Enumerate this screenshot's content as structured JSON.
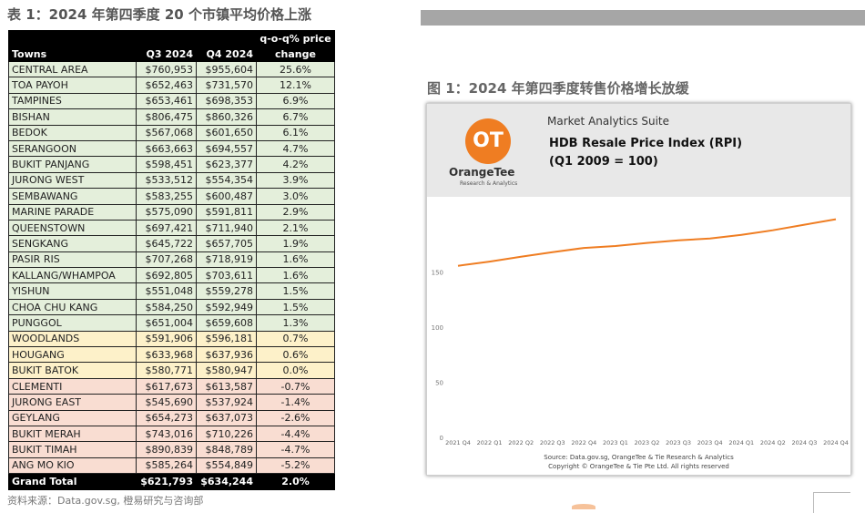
{
  "left": {
    "title": "表 1：2024 年第四季度 20 个市镇平均价格上涨",
    "source": "资料来源：Data.gov.sg, 橙易研究与咨询部",
    "header": {
      "pct_line1": "q-o-q% price",
      "towns": "Towns",
      "q3": "Q3 2024",
      "q4": "Q4 2024",
      "pct_line2": "change"
    },
    "rows": [
      {
        "town": "CENTRAL AREA",
        "q3": "$760,953",
        "q4": "$955,604",
        "chg": "25.6%",
        "band": "g"
      },
      {
        "town": "TOA PAYOH",
        "q3": "$652,463",
        "q4": "$731,570",
        "chg": "12.1%",
        "band": "g"
      },
      {
        "town": "TAMPINES",
        "q3": "$653,461",
        "q4": "$698,353",
        "chg": "6.9%",
        "band": "g"
      },
      {
        "town": "BISHAN",
        "q3": "$806,475",
        "q4": "$860,326",
        "chg": "6.7%",
        "band": "g"
      },
      {
        "town": "BEDOK",
        "q3": "$567,068",
        "q4": "$601,650",
        "chg": "6.1%",
        "band": "g"
      },
      {
        "town": "SERANGOON",
        "q3": "$663,663",
        "q4": "$694,557",
        "chg": "4.7%",
        "band": "g"
      },
      {
        "town": "BUKIT PANJANG",
        "q3": "$598,451",
        "q4": "$623,377",
        "chg": "4.2%",
        "band": "g"
      },
      {
        "town": "JURONG WEST",
        "q3": "$533,512",
        "q4": "$554,354",
        "chg": "3.9%",
        "band": "g"
      },
      {
        "town": "SEMBAWANG",
        "q3": "$583,255",
        "q4": "$600,487",
        "chg": "3.0%",
        "band": "g"
      },
      {
        "town": "MARINE PARADE",
        "q3": "$575,090",
        "q4": "$591,811",
        "chg": "2.9%",
        "band": "g"
      },
      {
        "town": "QUEENSTOWN",
        "q3": "$697,421",
        "q4": "$711,940",
        "chg": "2.1%",
        "band": "g"
      },
      {
        "town": "SENGKANG",
        "q3": "$645,722",
        "q4": "$657,705",
        "chg": "1.9%",
        "band": "g"
      },
      {
        "town": "PASIR RIS",
        "q3": "$707,268",
        "q4": "$718,919",
        "chg": "1.6%",
        "band": "g"
      },
      {
        "town": "KALLANG/WHAMPOA",
        "q3": "$692,805",
        "q4": "$703,611",
        "chg": "1.6%",
        "band": "g"
      },
      {
        "town": "YISHUN",
        "q3": "$551,048",
        "q4": "$559,278",
        "chg": "1.5%",
        "band": "g"
      },
      {
        "town": "CHOA CHU KANG",
        "q3": "$584,250",
        "q4": "$592,949",
        "chg": "1.5%",
        "band": "g"
      },
      {
        "town": "PUNGGOL",
        "q3": "$651,004",
        "q4": "$659,608",
        "chg": "1.3%",
        "band": "g"
      },
      {
        "town": "WOODLANDS",
        "q3": "$591,906",
        "q4": "$596,181",
        "chg": "0.7%",
        "band": "y"
      },
      {
        "town": "HOUGANG",
        "q3": "$633,968",
        "q4": "$637,936",
        "chg": "0.6%",
        "band": "y"
      },
      {
        "town": "BUKIT BATOK",
        "q3": "$580,771",
        "q4": "$580,947",
        "chg": "0.0%",
        "band": "y"
      },
      {
        "town": "CLEMENTI",
        "q3": "$617,673",
        "q4": "$613,587",
        "chg": "-0.7%",
        "band": "r"
      },
      {
        "town": "JURONG EAST",
        "q3": "$545,690",
        "q4": "$537,924",
        "chg": "-1.4%",
        "band": "r"
      },
      {
        "town": "GEYLANG",
        "q3": "$654,273",
        "q4": "$637,073",
        "chg": "-2.6%",
        "band": "r"
      },
      {
        "town": "BUKIT MERAH",
        "q3": "$743,016",
        "q4": "$710,226",
        "chg": "-4.4%",
        "band": "r"
      },
      {
        "town": "BUKIT TIMAH",
        "q3": "$890,839",
        "q4": "$848,789",
        "chg": "-4.7%",
        "band": "r"
      },
      {
        "town": "ANG MO KIO",
        "q3": "$585,264",
        "q4": "$554,849",
        "chg": "-5.2%",
        "band": "r"
      }
    ],
    "total": {
      "town": "Grand Total",
      "q3": "$621,793",
      "q4": "$634,244",
      "chg": "2.0%"
    },
    "colors": {
      "green": "#e4efdb",
      "yellow": "#fdf1c9",
      "red": "#f9ddd2",
      "header": "#000000"
    }
  },
  "right": {
    "title": "图 1：2024 年第四季度转售价格增长放缓",
    "card": {
      "suite": "Market Analytics Suite",
      "logo_mark": "OT",
      "logo_name": "OrangeTee",
      "logo_sub": "Research & Analytics",
      "title_line1": "HDB Resale Price Index (RPI)",
      "title_line2": "(Q1 2009 = 100)",
      "footer_line1": "Source: Data.gov.sg, OrangeTee & Tie Research & Analytics",
      "footer_line2": "Copyright © OrangeTee & Tie Pte Ltd. All rights reserved"
    }
  },
  "chart_data": {
    "type": "line",
    "title": "HDB Resale Price Index (RPI)",
    "subtitle": "(Q1 2009 = 100)",
    "categories": [
      "2021 Q4",
      "2022 Q1",
      "2022 Q2",
      "2022 Q3",
      "2022 Q4",
      "2023 Q1",
      "2023 Q2",
      "2023 Q3",
      "2023 Q4",
      "2024 Q1",
      "2024 Q2",
      "2024 Q3",
      "2024 Q4"
    ],
    "series": [
      {
        "values": [
          155.7,
          159.5,
          163.9,
          168.1,
          171.9,
          173.6,
          176.4,
          178.8,
          180.4,
          183.7,
          187.9,
          193.0,
          197.9
        ],
        "color": "#ef7d22"
      }
    ],
    "yticks": [
      0,
      50,
      100,
      150
    ],
    "ylim": [
      0,
      210
    ],
    "grid": false
  }
}
